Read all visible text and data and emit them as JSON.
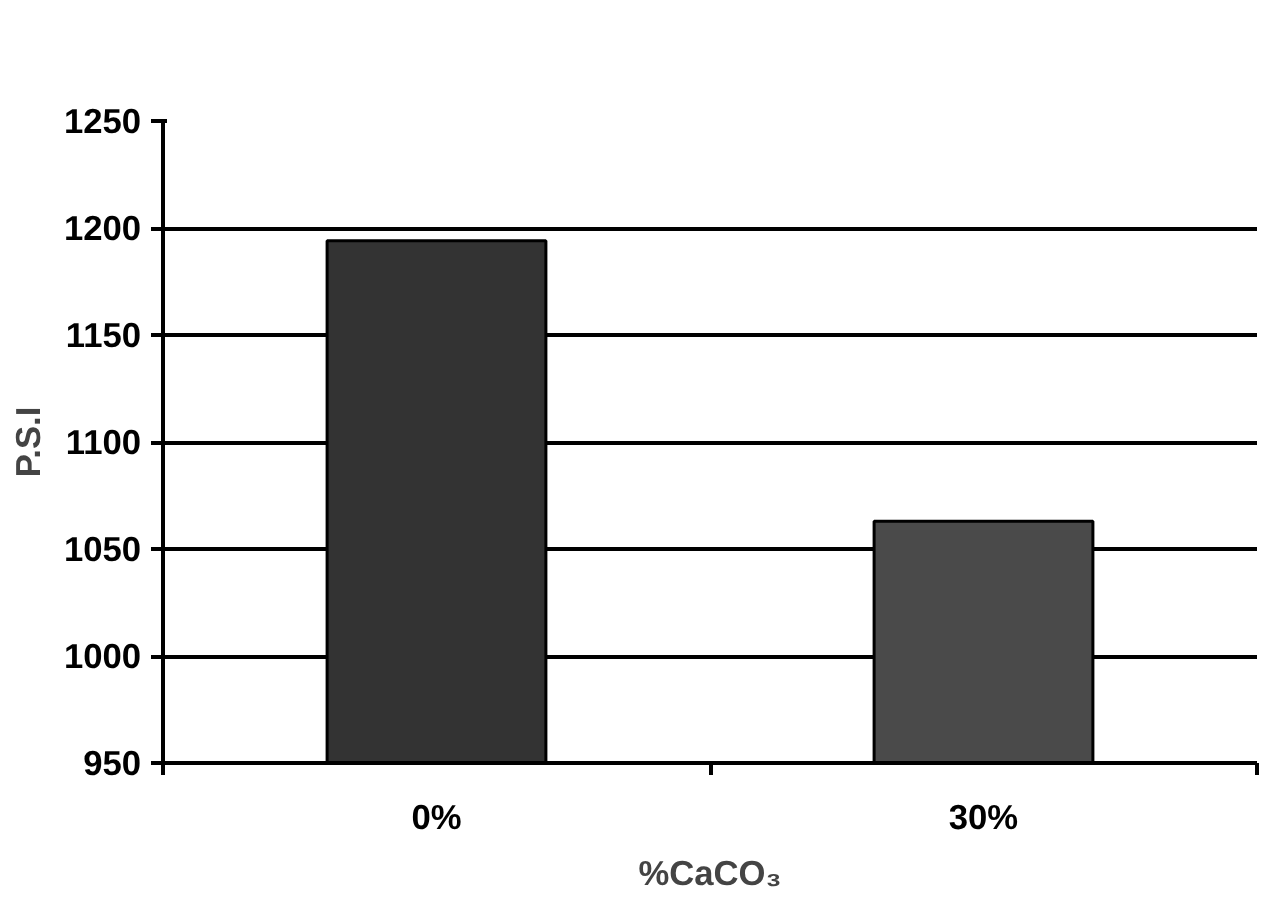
{
  "chart_data": {
    "type": "bar",
    "categories": [
      "0%",
      "30%"
    ],
    "xlabel": "%CaCO₃",
    "ylabel": "P.S.I",
    "values": [
      1194,
      1063
    ],
    "colors": [
      "#333333",
      "#4a4a4a"
    ],
    "ylim": [
      950,
      1250
    ],
    "yticks": [
      950,
      1000,
      1050,
      1100,
      1150,
      1200,
      1250
    ],
    "grid": "y"
  }
}
